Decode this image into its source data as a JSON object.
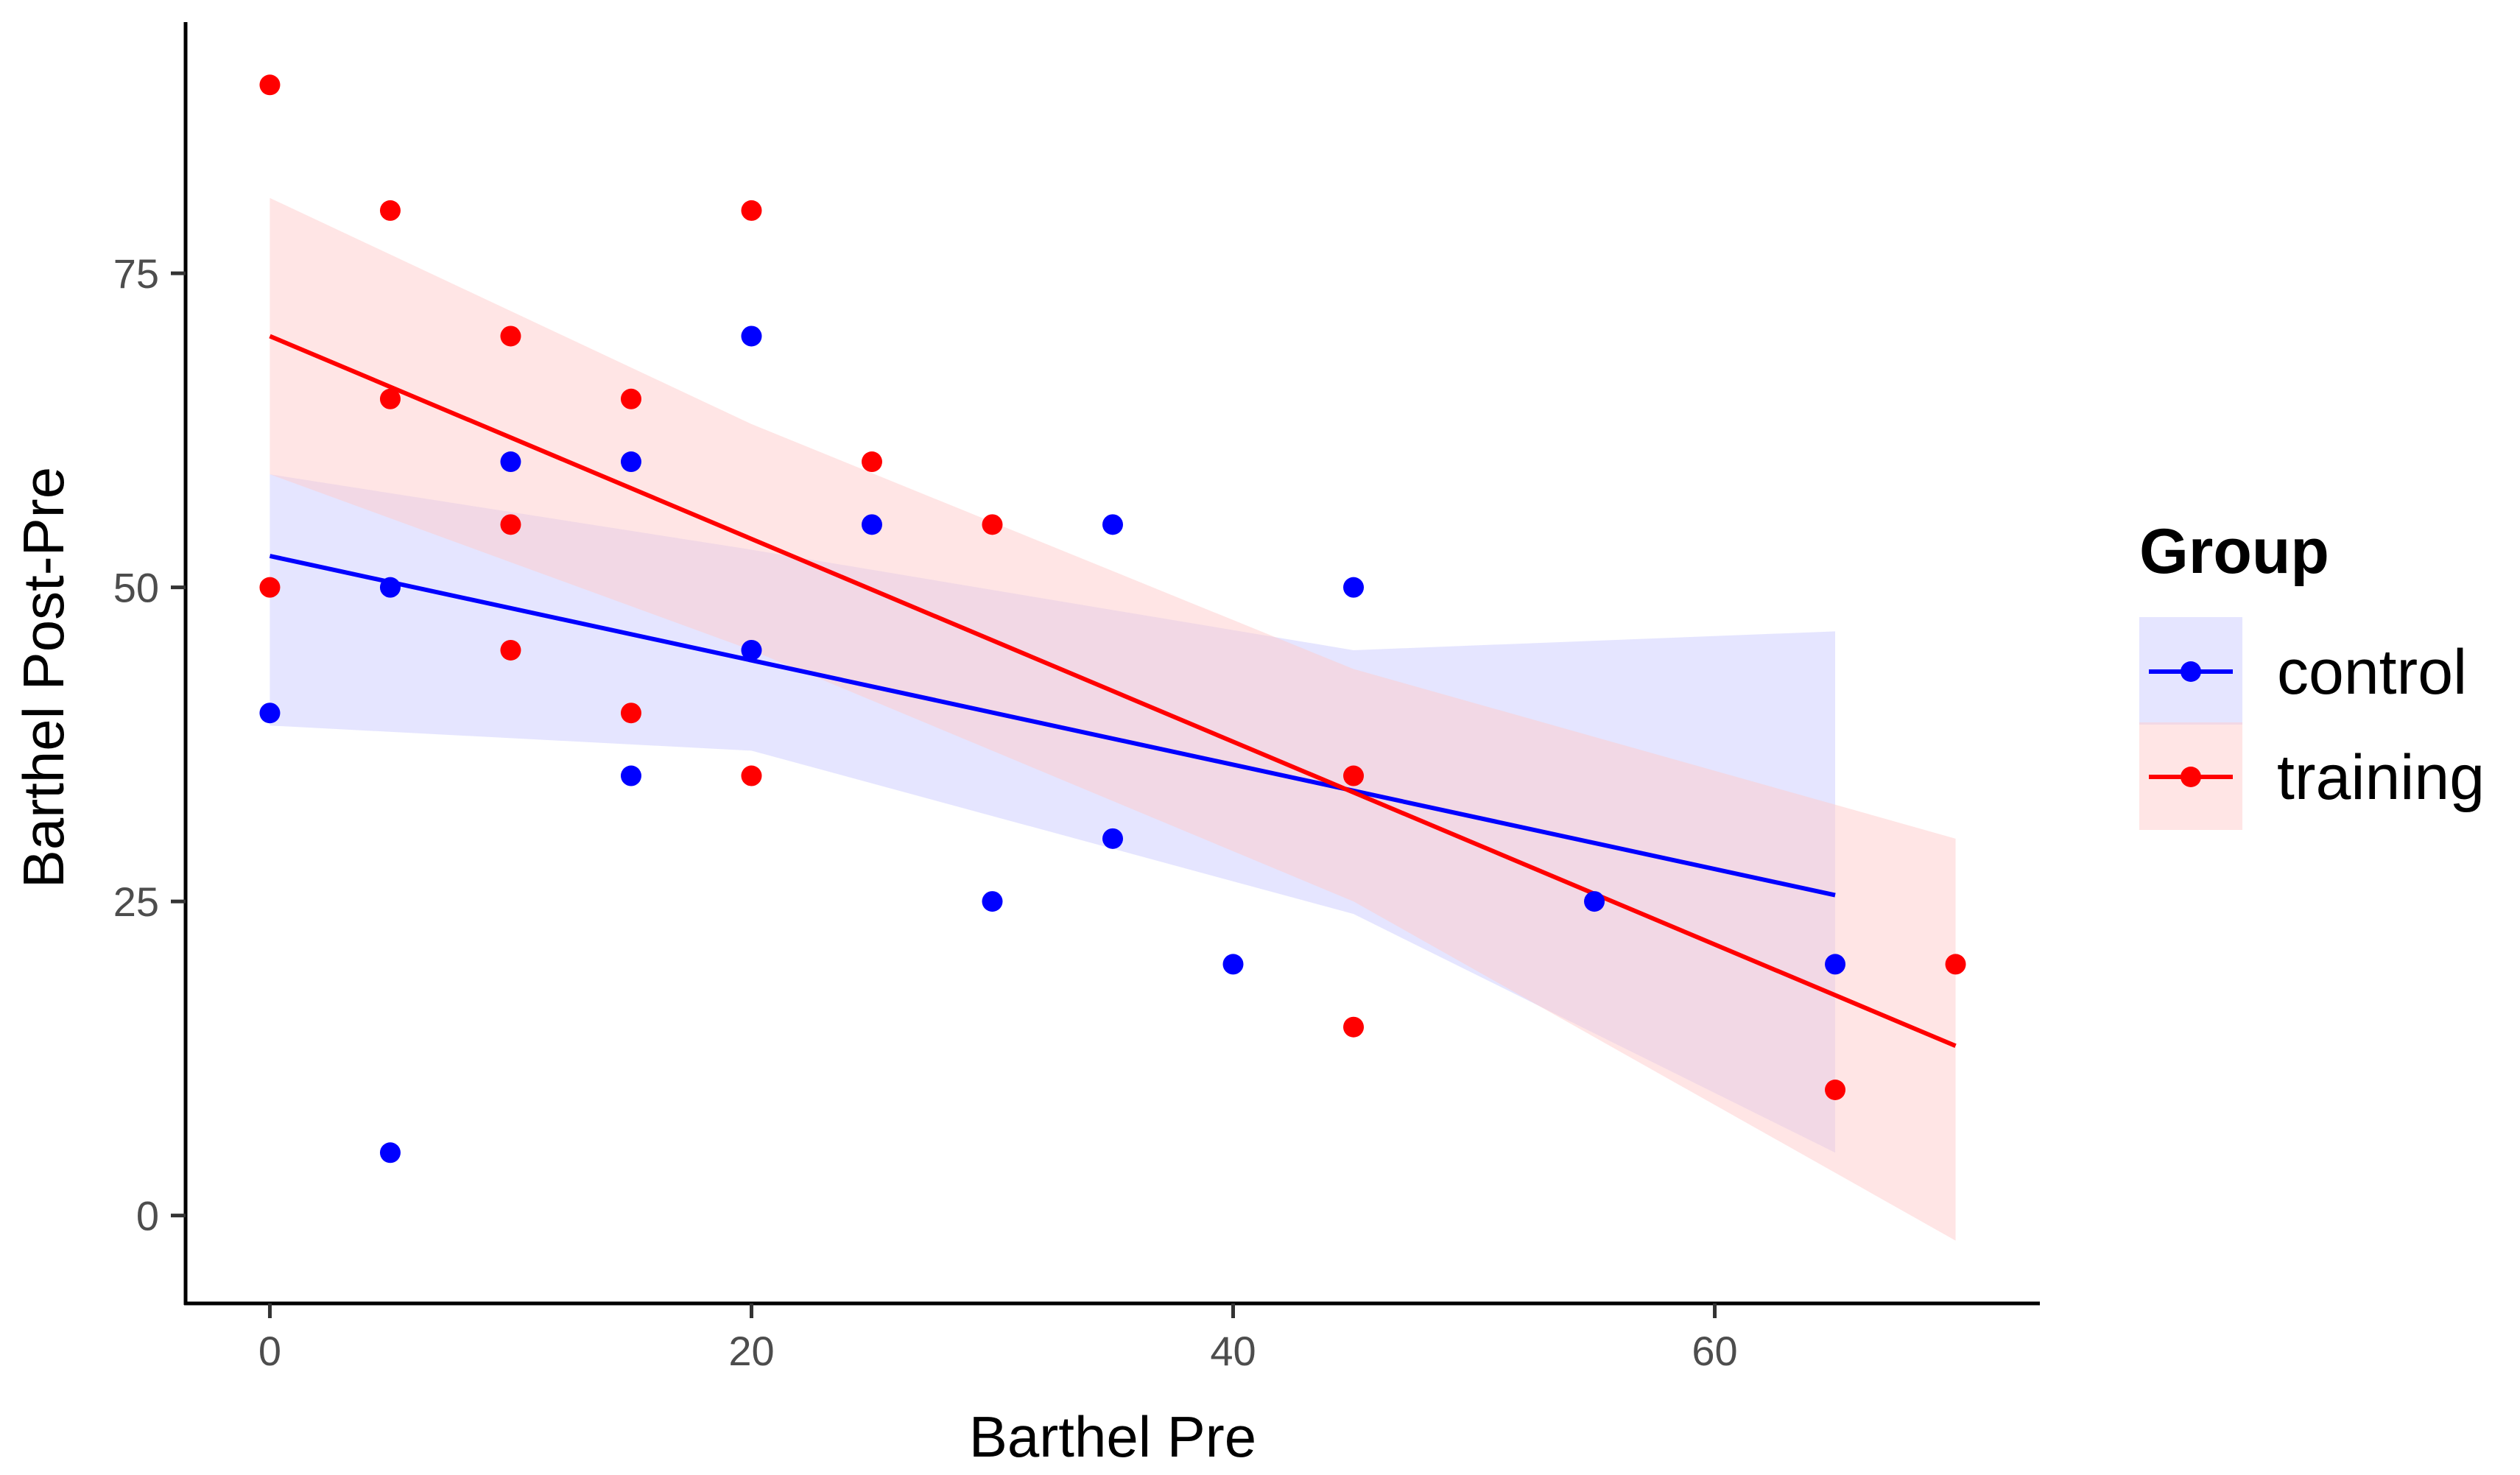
{
  "chart_data": {
    "type": "scatter",
    "title": "",
    "xlabel": "Barthel Pre",
    "ylabel": "Barthel Post-Pre",
    "xlim": [
      -3.5,
      73.5
    ],
    "ylim": [
      -7,
      95
    ],
    "x_ticks": [
      0,
      20,
      40,
      60
    ],
    "y_ticks": [
      0,
      25,
      50,
      75
    ],
    "x_tick_labels": [
      "0",
      "20",
      "40",
      "60"
    ],
    "y_tick_labels": [
      "0",
      "25",
      "50",
      "75"
    ],
    "grid": false,
    "legend": {
      "title": "Group",
      "placement": "right"
    },
    "series": [
      {
        "name": "control",
        "color": "#0000ff",
        "band_color": "#ccccff",
        "points": [
          {
            "x": 0,
            "y": 40
          },
          {
            "x": 5,
            "y": 5
          },
          {
            "x": 5,
            "y": 50
          },
          {
            "x": 10,
            "y": 60
          },
          {
            "x": 15,
            "y": 60
          },
          {
            "x": 15,
            "y": 35
          },
          {
            "x": 20,
            "y": 70
          },
          {
            "x": 20,
            "y": 45
          },
          {
            "x": 25,
            "y": 55
          },
          {
            "x": 30,
            "y": 25
          },
          {
            "x": 35,
            "y": 55
          },
          {
            "x": 35,
            "y": 30
          },
          {
            "x": 40,
            "y": 20
          },
          {
            "x": 45,
            "y": 50
          },
          {
            "x": 55,
            "y": 25
          },
          {
            "x": 65,
            "y": 20
          }
        ],
        "fit": {
          "x": [
            0,
            65
          ],
          "y": [
            52.5,
            25.5
          ]
        },
        "ci_band": {
          "x": [
            0,
            20,
            45,
            65
          ],
          "upper": [
            59,
            53,
            45,
            46.5
          ],
          "lower": [
            39,
            37,
            24,
            5
          ]
        }
      },
      {
        "name": "training",
        "color": "#ff0000",
        "band_color": "#ffcccc",
        "points": [
          {
            "x": 0,
            "y": 90
          },
          {
            "x": 0,
            "y": 50
          },
          {
            "x": 5,
            "y": 80
          },
          {
            "x": 5,
            "y": 65
          },
          {
            "x": 10,
            "y": 70
          },
          {
            "x": 10,
            "y": 55
          },
          {
            "x": 10,
            "y": 45
          },
          {
            "x": 15,
            "y": 65
          },
          {
            "x": 15,
            "y": 40
          },
          {
            "x": 20,
            "y": 80
          },
          {
            "x": 20,
            "y": 35
          },
          {
            "x": 25,
            "y": 60
          },
          {
            "x": 30,
            "y": 55
          },
          {
            "x": 45,
            "y": 35
          },
          {
            "x": 45,
            "y": 15
          },
          {
            "x": 65,
            "y": 10
          },
          {
            "x": 70,
            "y": 20
          }
        ],
        "fit": {
          "x": [
            0,
            70
          ],
          "y": [
            70,
            13.5
          ]
        },
        "ci_band": {
          "x": [
            0,
            20,
            45,
            70
          ],
          "upper": [
            81,
            63,
            43.5,
            30
          ],
          "lower": [
            59,
            45,
            25,
            -2
          ]
        }
      }
    ]
  }
}
